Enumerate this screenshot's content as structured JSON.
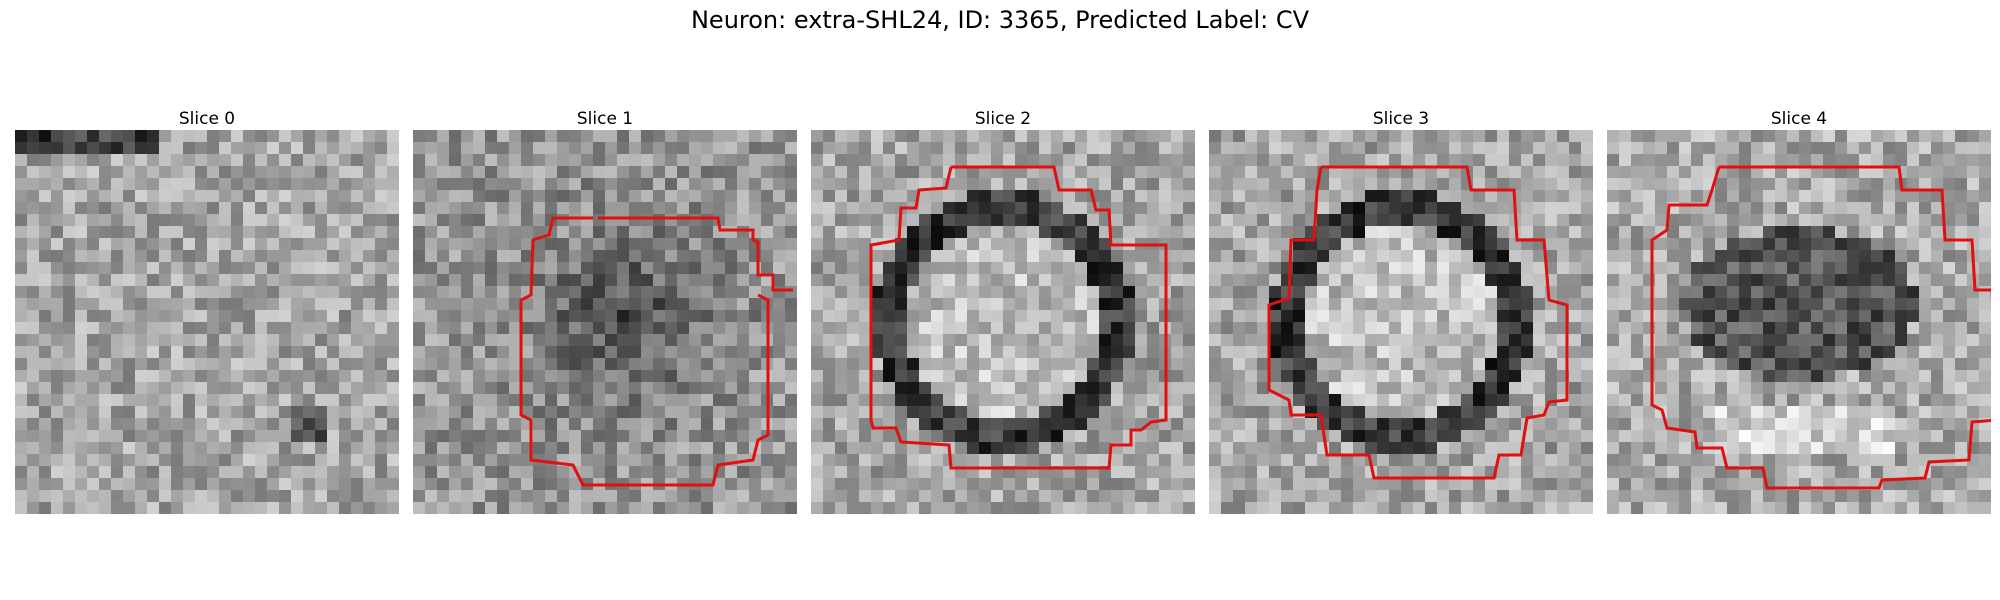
{
  "figure": {
    "title": "Neuron: extra-SHL24, ID: 3365, Predicted Label: CV"
  },
  "slices": [
    {
      "title": "Slice 0",
      "contour": false,
      "pattern": "noise"
    },
    {
      "title": "Slice 1",
      "contour": true,
      "pattern": "dark-blob"
    },
    {
      "title": "Slice 2",
      "contour": true,
      "pattern": "ring"
    },
    {
      "title": "Slice 3",
      "contour": true,
      "pattern": "ring"
    },
    {
      "title": "Slice 4",
      "contour": true,
      "pattern": "dark-center"
    }
  ],
  "colors": {
    "contour": "#e01010"
  },
  "colormap": "gray",
  "grid_cells": 32
}
